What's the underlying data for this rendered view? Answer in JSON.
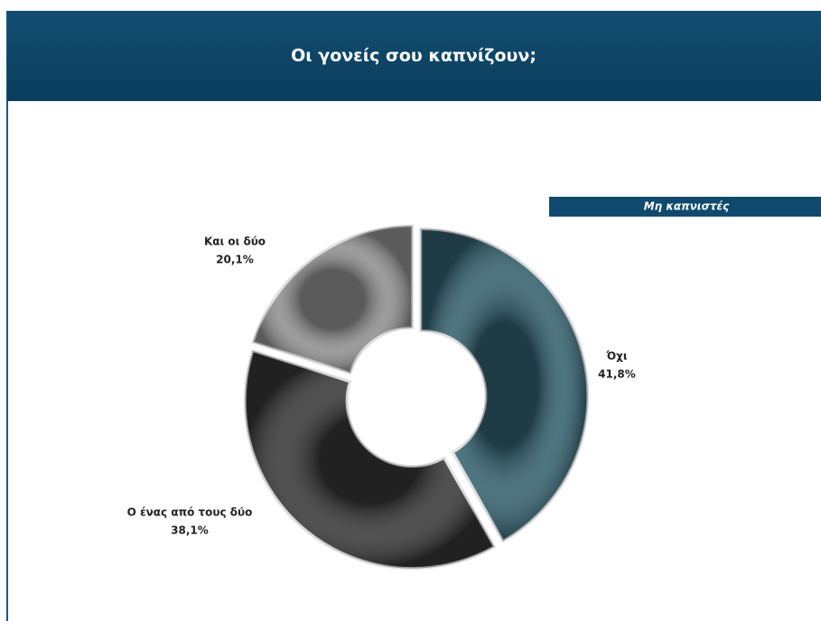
{
  "chart_data": {
    "type": "donut",
    "title": "Οι γονείς σου καπνίζουν;",
    "subtitle": "Μη καπνιστές",
    "categories": [
      "Όχι",
      "Ο ένας από τους δύο",
      "Και οι δύο"
    ],
    "values": [
      41.8,
      38.1,
      20.1
    ],
    "value_labels": [
      "41,8%",
      "38,1%",
      "20,1%"
    ],
    "colors": [
      "#2f5d6b",
      "#333333",
      "#8c8c8c"
    ]
  }
}
